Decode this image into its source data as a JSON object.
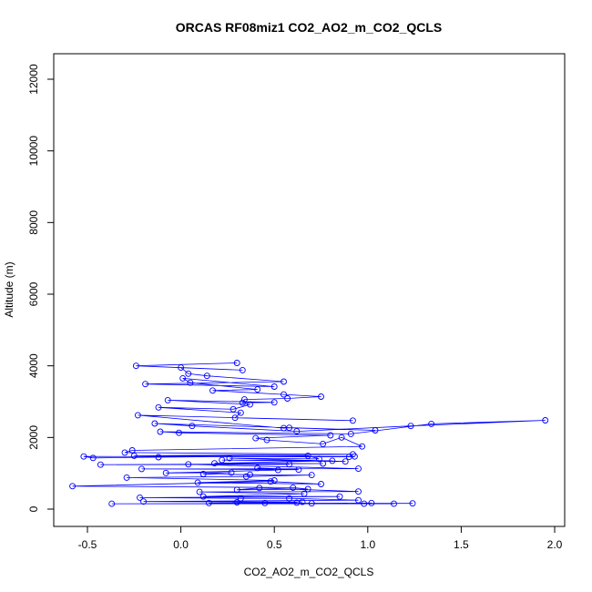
{
  "chart_data": {
    "type": "line",
    "title": "ORCAS RF08miz1 CO2_AO2_m_CO2_QCLS",
    "xlabel": "CO2_AO2_m_CO2_QCLS",
    "ylabel": "Altitude (m)",
    "xlim": [
      -0.6,
      2.0
    ],
    "ylim": [
      0,
      12500
    ],
    "x_ticks": [
      -0.5,
      0.0,
      0.5,
      1.0,
      1.5,
      2.0
    ],
    "y_ticks": [
      0,
      2000,
      4000,
      6000,
      8000,
      10000,
      12000
    ],
    "grid": false,
    "legend": "none",
    "series": [
      {
        "color": "#0000ff",
        "marker": "open-circle",
        "x": [
          0.3,
          -0.24,
          0.33,
          0.0,
          0.04,
          0.14,
          0.55,
          -0.19,
          0.5,
          0.01,
          0.05,
          0.41,
          0.17,
          0.55,
          0.75,
          0.57,
          0.34,
          0.33,
          0.5,
          -0.07,
          0.37,
          0.28,
          -0.12,
          0.32,
          0.29,
          0.92,
          -0.23,
          0.55,
          0.58,
          1.04,
          -0.14,
          0.06,
          0.62,
          1.23,
          1.95,
          1.34,
          0.91,
          -0.11,
          -0.01,
          0.8,
          0.4,
          0.46,
          0.76,
          0.86,
          0.97,
          -0.26,
          -0.3,
          0.92,
          -0.25,
          0.93,
          0.9,
          -0.52,
          -0.47,
          -0.12,
          0.68,
          0.74,
          0.26,
          0.88,
          0.22,
          0.81,
          0.18,
          0.76,
          -0.43,
          0.58,
          0.04,
          0.95,
          -0.21,
          0.63,
          0.41,
          0.52,
          -0.08,
          0.27,
          0.12,
          0.37,
          0.7,
          0.35,
          -0.29,
          0.5,
          0.09,
          0.75,
          0.48,
          -0.58,
          0.6,
          0.68,
          0.3,
          0.42,
          0.95,
          0.1,
          0.66,
          0.12,
          0.85,
          -0.22,
          0.32,
          0.58,
          0.95,
          -0.2,
          0.65,
          0.15,
          1.24,
          -0.37,
          0.98,
          1.14,
          0.45,
          0.62,
          0.3,
          0.7,
          1.02
        ],
        "y": [
          4080,
          4000,
          3880,
          3950,
          3780,
          3720,
          3560,
          3490,
          3420,
          3650,
          3530,
          3340,
          3310,
          3200,
          3140,
          3090,
          3060,
          2970,
          2980,
          3040,
          2920,
          2790,
          2840,
          2690,
          2550,
          2470,
          2620,
          2260,
          2270,
          2200,
          2390,
          2320,
          2170,
          2320,
          2480,
          2380,
          2100,
          2160,
          2130,
          2060,
          1980,
          1930,
          1820,
          2000,
          1750,
          1640,
          1580,
          1530,
          1490,
          1470,
          1460,
          1470,
          1430,
          1450,
          1490,
          1400,
          1420,
          1330,
          1370,
          1350,
          1280,
          1270,
          1240,
          1250,
          1250,
          1130,
          1120,
          1100,
          1150,
          1090,
          1010,
          1020,
          980,
          960,
          950,
          910,
          880,
          800,
          740,
          700,
          770,
          640,
          600,
          560,
          540,
          590,
          490,
          480,
          430,
          350,
          350,
          320,
          300,
          300,
          250,
          210,
          200,
          170,
          160,
          150,
          150,
          150,
          170,
          180,
          190,
          160,
          170
        ]
      }
    ]
  }
}
